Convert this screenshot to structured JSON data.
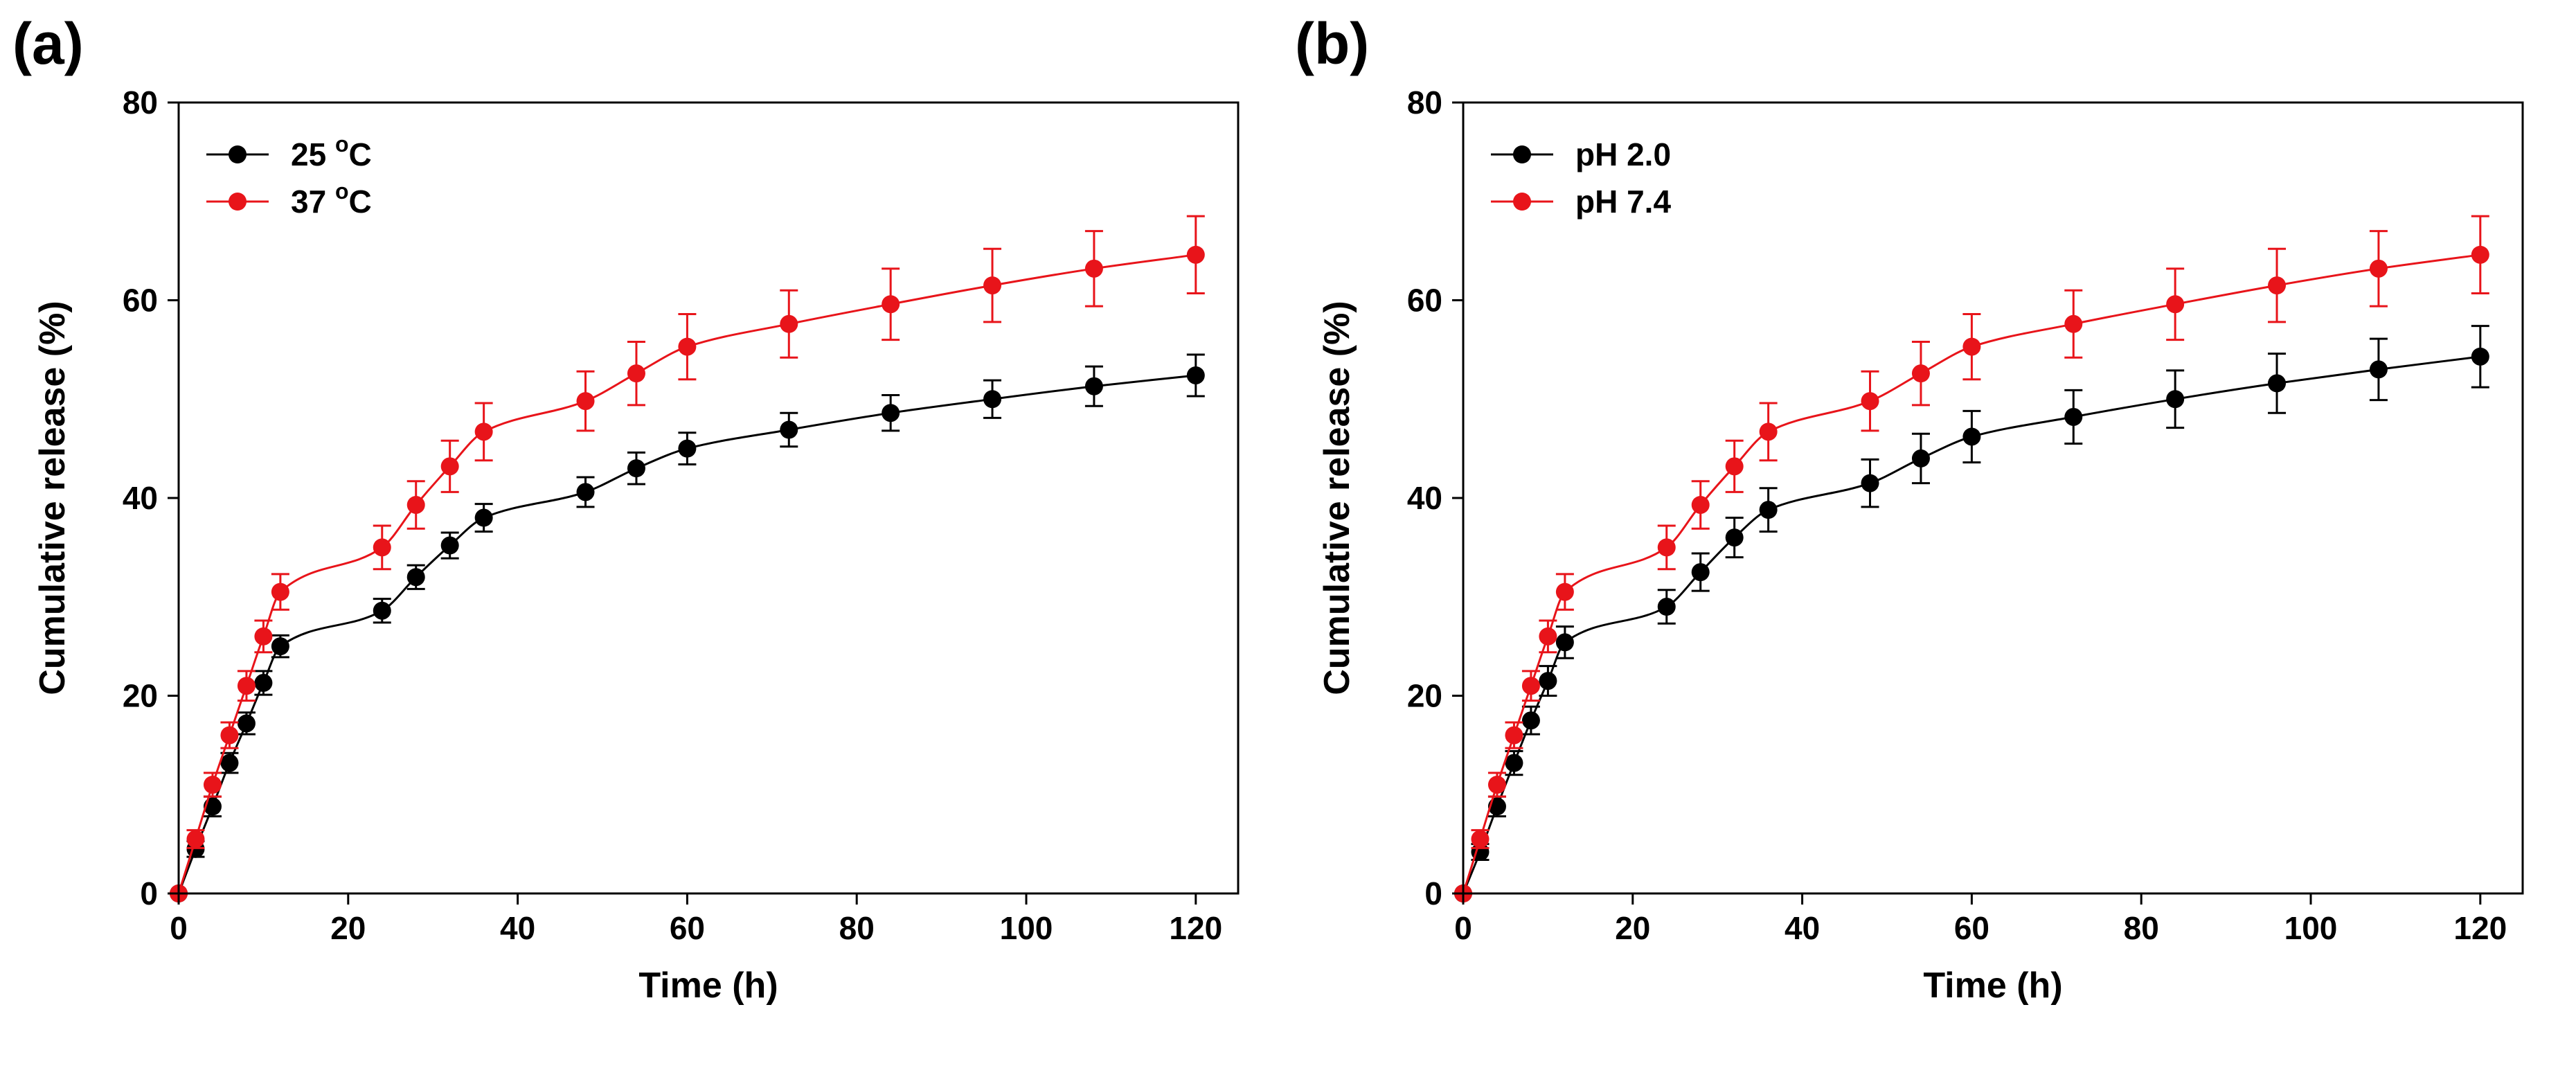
{
  "chart_data": [
    {
      "type": "line",
      "panel_label": "(a)",
      "xlabel": "Time (h)",
      "ylabel": "Cumulative release (%)",
      "xlim": [
        0,
        125
      ],
      "ylim": [
        0,
        80
      ],
      "x_ticks": [
        0,
        20,
        40,
        60,
        80,
        100,
        120
      ],
      "y_ticks": [
        0,
        20,
        40,
        60,
        80
      ],
      "legend_position": "top-left",
      "x": [
        0,
        2,
        4,
        6,
        8,
        10,
        12,
        24,
        28,
        32,
        36,
        48,
        54,
        60,
        72,
        84,
        96,
        108,
        120
      ],
      "series": [
        {
          "name": "25",
          "legend_sup": "o",
          "legend_suffix": "C",
          "color": "#000000",
          "values": [
            0,
            4.5,
            8.8,
            13.2,
            17.2,
            21.3,
            25.0,
            28.6,
            32.0,
            35.2,
            38.0,
            40.6,
            43.0,
            45.0,
            46.9,
            48.6,
            50.0,
            51.3,
            52.4
          ],
          "errors": [
            0,
            0.8,
            1.0,
            1.0,
            1.1,
            1.2,
            1.1,
            1.2,
            1.2,
            1.3,
            1.4,
            1.5,
            1.6,
            1.6,
            1.7,
            1.8,
            1.9,
            2.0,
            2.1
          ]
        },
        {
          "name": "37",
          "legend_sup": "o",
          "legend_suffix": "C",
          "color": "#e8141a",
          "values": [
            0,
            5.5,
            11.0,
            16.0,
            21.0,
            26.0,
            30.5,
            35.0,
            39.3,
            43.2,
            46.7,
            49.8,
            52.6,
            55.3,
            57.6,
            59.6,
            61.5,
            63.2,
            64.6
          ],
          "errors": [
            0,
            0.9,
            1.2,
            1.3,
            1.5,
            1.6,
            1.8,
            2.2,
            2.4,
            2.6,
            2.9,
            3.0,
            3.2,
            3.3,
            3.4,
            3.6,
            3.7,
            3.8,
            3.9
          ]
        }
      ]
    },
    {
      "type": "line",
      "panel_label": "(b)",
      "xlabel": "Time (h)",
      "ylabel": "Cumulative release (%)",
      "xlim": [
        0,
        125
      ],
      "ylim": [
        0,
        80
      ],
      "x_ticks": [
        0,
        20,
        40,
        60,
        80,
        100,
        120
      ],
      "y_ticks": [
        0,
        20,
        40,
        60,
        80
      ],
      "legend_position": "top-left",
      "x": [
        0,
        2,
        4,
        6,
        8,
        10,
        12,
        24,
        28,
        32,
        36,
        48,
        54,
        60,
        72,
        84,
        96,
        108,
        120
      ],
      "series": [
        {
          "name": "pH 2.0",
          "legend_sup": "",
          "legend_suffix": "",
          "color": "#000000",
          "values": [
            0,
            4.2,
            8.8,
            13.2,
            17.5,
            21.5,
            25.4,
            29.0,
            32.5,
            36.0,
            38.8,
            41.5,
            44.0,
            46.2,
            48.2,
            50.0,
            51.6,
            53.0,
            54.3
          ],
          "errors": [
            0,
            0.8,
            1.0,
            1.2,
            1.4,
            1.5,
            1.6,
            1.7,
            1.9,
            2.0,
            2.2,
            2.4,
            2.5,
            2.6,
            2.7,
            2.9,
            3.0,
            3.1,
            3.1
          ]
        },
        {
          "name": "pH 7.4",
          "legend_sup": "",
          "legend_suffix": "",
          "color": "#e8141a",
          "values": [
            0,
            5.5,
            11.0,
            16.0,
            21.0,
            26.0,
            30.5,
            35.0,
            39.3,
            43.2,
            46.7,
            49.8,
            52.6,
            55.3,
            57.6,
            59.6,
            61.5,
            63.2,
            64.6
          ],
          "errors": [
            0,
            0.9,
            1.2,
            1.3,
            1.5,
            1.6,
            1.8,
            2.2,
            2.4,
            2.6,
            2.9,
            3.0,
            3.2,
            3.3,
            3.4,
            3.6,
            3.7,
            3.8,
            3.9
          ]
        }
      ]
    }
  ]
}
